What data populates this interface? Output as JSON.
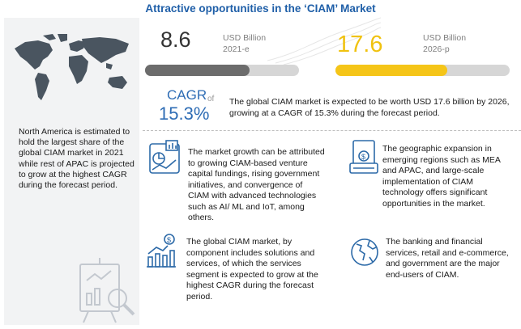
{
  "header": {
    "title": "Attractive opportunities in the ‘CIAM’ Market"
  },
  "market": {
    "value_2021": "8.6",
    "unit_2021": "USD Billion",
    "year_2021": "2021-e",
    "value_2026": "17.6",
    "unit_2026": "USD Billion",
    "year_2026": "2026-p",
    "colors": {
      "bar_2021": "#6c6c6c",
      "bar_2026": "#f5c518",
      "accent": "#2f6db5"
    }
  },
  "cagr": {
    "label": "CAGR",
    "of": "of",
    "value": "15.3%",
    "description": "The global CIAM market is expected to be worth USD 17.6 billion by 2026, growing at a CAGR of 15.3% during the forecast period."
  },
  "left_panel": {
    "text": "North America is estimated to hold the largest share of the global CIAM market in 2021 while rest of APAC is projected to grow at the highest CAGR during the forecast period."
  },
  "blocks": [
    {
      "icon": "chart-analysis-icon",
      "text": "The market growth can be attributed to growing CIAM-based venture capital fundings, rising government initiatives, and convergence of CIAM with advanced technologies such as AI/ ML and IoT, among others."
    },
    {
      "icon": "money-icon",
      "text": "The geographic expansion in emerging regions such as MEA and APAC, and large-scale implementation of CIAM technology offers significant opportunities in the market."
    },
    {
      "icon": "growth-bars-icon",
      "text": "The global CIAM market, by component includes solutions and services, of which the services segment is expected to grow at the highest CAGR during the forecast period."
    },
    {
      "icon": "globe-icon",
      "text": "The banking and financial services, retail and e-commerce, and government are the major end-users of CIAM."
    }
  ]
}
